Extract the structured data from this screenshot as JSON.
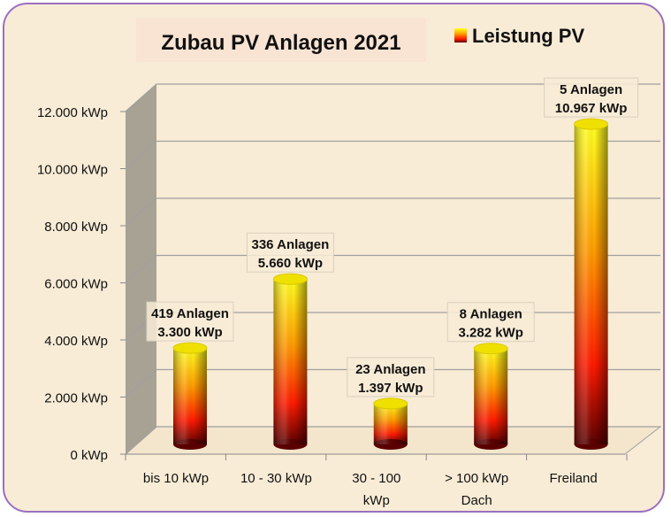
{
  "chart_data": {
    "type": "bar",
    "title": "Zubau PV Anlagen 2021",
    "legend": {
      "label": "Leistung PV",
      "position": "top-right"
    },
    "categories": [
      [
        "bis 10 kWp"
      ],
      [
        "10 - 30 kWp"
      ],
      [
        "30 - 100",
        "kWp"
      ],
      [
        "> 100 kWp",
        "Dach"
      ],
      [
        "Freiland"
      ]
    ],
    "series": [
      {
        "name": "Leistung PV",
        "values": [
          3300,
          5660,
          1397,
          3282,
          10967
        ]
      }
    ],
    "data_labels": [
      [
        "419 Anlagen",
        "3.300 kWp"
      ],
      [
        "336 Anlagen",
        "5.660 kWp"
      ],
      [
        "23 Anlagen",
        "1.397 kWp"
      ],
      [
        "8 Anlagen",
        "3.282 kWp"
      ],
      [
        "5 Anlagen",
        "10.967 kWp"
      ]
    ],
    "yticks": [
      0,
      2000,
      4000,
      6000,
      8000,
      10000,
      12000
    ],
    "ytick_labels": [
      "0 kWp",
      "2.000 kWp",
      "4.000 kWp",
      "6.000 kWp",
      "8.000 kWp",
      "10.000 kWp",
      "12.000 kWp"
    ],
    "ylim": [
      0,
      12000
    ],
    "grid": true,
    "colors": {
      "top": "#ffff00",
      "mid": "#ff2000",
      "bottom": "#500000",
      "wall": "#a8a295",
      "grid": "#a0a0a0"
    }
  }
}
